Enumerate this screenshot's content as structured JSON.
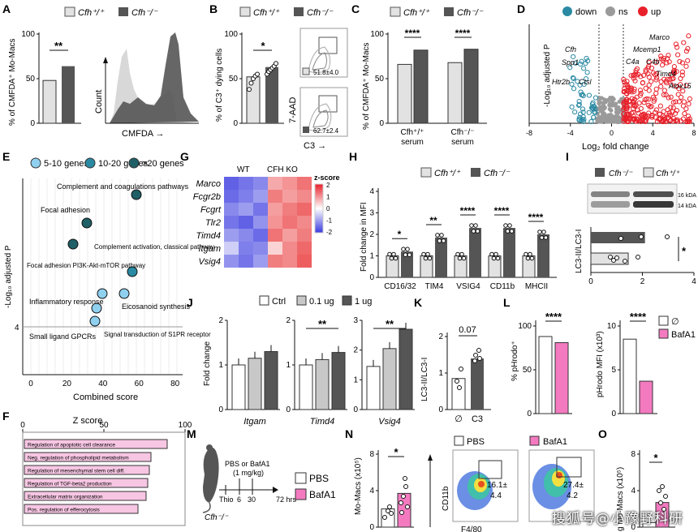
{
  "palette": {
    "wt": "#e2e2e2",
    "ko": "#555555",
    "dark": "#444444",
    "teal": "#2b8aa3",
    "red": "#e8202a",
    "gray": "#9a9a9a",
    "pink": "#f47ac0",
    "lightblue": "#8fd0ef",
    "tealdark": "#1f5f66"
  },
  "panels": {
    "A": "A",
    "B": "B",
    "C": "C",
    "D": "D",
    "E": "E",
    "F": "F",
    "G": "G",
    "H": "H",
    "I": "I",
    "J": "J",
    "K": "K",
    "L": "L",
    "M": "M",
    "N": "N",
    "O": "O"
  },
  "legend_genotype": {
    "wt": "Cfh⁺/⁺",
    "ko": "Cfh⁻/⁻"
  },
  "A": {
    "ylabel": "% of CMFDA⁺ Mo-Macs",
    "yticks": [
      "0",
      "50",
      "100"
    ],
    "ylim": [
      0,
      100
    ],
    "values": [
      48,
      64
    ],
    "sig": "**",
    "hist": {
      "ylabel": "Count",
      "xlabel": "CMFDA →"
    }
  },
  "B": {
    "ylabel": "% of C3⁺ dying cells",
    "yticks": [
      "0",
      "50",
      "100"
    ],
    "ylim": [
      0,
      100
    ],
    "values": [
      52,
      63
    ],
    "sig": "*",
    "points_wt": [
      38,
      45,
      50,
      53,
      55
    ],
    "points_ko": [
      55,
      58,
      60,
      62,
      64,
      67
    ],
    "flow": {
      "ylabel": "7-AAD",
      "xlabel": "C3 →",
      "wt_text": "51.8±4.0",
      "ko_text": "62.7±2.4"
    }
  },
  "C": {
    "ylabel": "% of CMFDA⁺ Mo-Macs",
    "yticks": [
      "0",
      "50",
      "100"
    ],
    "ylim": [
      0,
      100
    ],
    "groups": [
      {
        "label1": "Cfh⁺/⁺",
        "label2": "serum",
        "values": [
          66,
          82
        ],
        "sig": "****"
      },
      {
        "label1": "Cfh⁻/⁻",
        "label2": "serum",
        "values": [
          68,
          83
        ],
        "sig": "****"
      }
    ]
  },
  "D": {
    "legend": [
      "down",
      "ns",
      "up"
    ],
    "ylabel": "-Log₁₀ adjusted P",
    "xlabel": "Log₂ fold change",
    "xticks": [
      "-8",
      "-4",
      "0",
      "4",
      "8"
    ],
    "xlim": [
      -8,
      8
    ],
    "labels_down": [
      "Cfh",
      "Spp1",
      "Htr2b",
      "Ctsl"
    ],
    "labels_up": [
      "Marco",
      "Mcemp1",
      "C4a",
      "C4b",
      "Timd4",
      "Alox15"
    ]
  },
  "E": {
    "legend": [
      "5-10 genes",
      "10-20 genes",
      ">20 genes"
    ],
    "ylabel": "-Log₁₀ adjusted P",
    "xlabel": "Combined score",
    "xticks": [
      "0",
      "20",
      "40",
      "60",
      "80"
    ],
    "yticks": [
      "4"
    ],
    "labels": [
      "Complement and coagulations pathways",
      "Focal adhesion",
      "Focal adhesion PI3K-Akt-mTOR pathway",
      "Complement activation, classical pathway",
      "Inflammatory response",
      "Eicosanoid synthesis",
      "Small ligand GPCRs",
      "Signal transduction of S1PR receptor"
    ]
  },
  "F": {
    "title": "Z score",
    "xticks": [
      "0",
      "50",
      "100"
    ],
    "xlim": [
      0,
      100
    ],
    "terms": [
      "Regulation of apoptotic cell clearance",
      "Neg. regulation of phospholipid metabolism",
      "Regulation of mesenchymal stem cell diff.",
      "Regulation of TGF-beta2 production",
      "Extracellular matrix organization",
      "Pos. regulation of efferocytosis"
    ],
    "values": [
      90,
      80,
      79,
      78,
      77,
      72
    ]
  },
  "G": {
    "groups": [
      "WT",
      "CFH KO"
    ],
    "genes": [
      "Marco",
      "Fcgr2b",
      "Fcgrt",
      "Tlr2",
      "Timd4",
      "Itgam",
      "Vsig4"
    ],
    "scale_title": "z-score",
    "scale_ticks": [
      "2",
      "1",
      "0",
      "-1",
      "-2"
    ],
    "z": [
      [
        -1.6,
        -1.4,
        -1.2,
        0.8,
        1.0,
        1.3
      ],
      [
        -1.5,
        -1.3,
        -1.0,
        1.2,
        0.9,
        1.1
      ],
      [
        -1.2,
        -1.0,
        -1.4,
        0.9,
        1.2,
        1.4
      ],
      [
        -1.4,
        -1.6,
        -1.1,
        1.0,
        1.3,
        1.1
      ],
      [
        -1.0,
        -1.2,
        -1.5,
        1.3,
        0.9,
        1.2
      ],
      [
        -0.5,
        -1.3,
        -1.2,
        0.4,
        1.1,
        1.4
      ],
      [
        -1.1,
        -1.4,
        -1.0,
        1.2,
        1.1,
        1.5
      ]
    ]
  },
  "H": {
    "ylabel": "Fold change in MFI",
    "yticks": [
      "0",
      "1",
      "2",
      "3",
      "4"
    ],
    "ylim": [
      0,
      4
    ],
    "categories": [
      "CD16/32",
      "TIM4",
      "VSIG4",
      "CD11b",
      "MHCII"
    ],
    "wt": [
      1.0,
      1.0,
      1.0,
      1.0,
      1.0
    ],
    "ko": [
      1.2,
      1.85,
      2.3,
      2.3,
      2.0
    ],
    "sig": [
      "*",
      "**",
      "****",
      "****",
      "****"
    ]
  },
  "I": {
    "legend": [
      "Cfh⁻/⁻",
      "Cfh⁺/⁺"
    ],
    "kda": [
      "16 kDA",
      "14 kDA"
    ],
    "ylabel": "LC3-II/LC3-I",
    "xticks": [
      "0",
      "2",
      "4"
    ],
    "xlim": [
      0,
      4
    ],
    "values_ko": 2.1,
    "values_wt": 1.45,
    "sig": "*"
  },
  "J": {
    "legend": [
      "Ctrl",
      "0.1 ug",
      "1 ug"
    ],
    "ylabel": "Fold change",
    "panels": [
      {
        "gene": "Itgam",
        "yticks": [
          "0",
          "1",
          "2"
        ],
        "ymax": 2,
        "values": [
          1.0,
          1.15,
          1.3
        ],
        "sig": ""
      },
      {
        "gene": "Timd4",
        "yticks": [
          "0",
          "1",
          "2"
        ],
        "ymax": 2,
        "values": [
          1.0,
          1.12,
          1.28
        ],
        "sig": "**"
      },
      {
        "gene": "Vsig4",
        "yticks": [
          "0",
          "1",
          "2",
          "3"
        ],
        "ymax": 3,
        "values": [
          1.45,
          2.05,
          2.7
        ],
        "sig": "**"
      }
    ]
  },
  "K": {
    "ylabel": "LC3-II/LC3-I",
    "yticks": [
      "0",
      "1",
      "2"
    ],
    "ylim": [
      0,
      2
    ],
    "categories": [
      "∅",
      "C3"
    ],
    "values": [
      0.85,
      1.4
    ],
    "p": "0.07"
  },
  "L": {
    "legend": [
      "∅",
      "BafA1"
    ],
    "left": {
      "ylabel": "% pHrodo⁺",
      "yticks": [
        "0",
        "50",
        "100"
      ],
      "ymax": 100,
      "values": [
        88,
        81
      ],
      "sig": "****"
    },
    "right": {
      "ylabel": "pHrodo MFI (x10³)",
      "yticks": [
        "0",
        "5",
        "10"
      ],
      "ymax": 10,
      "values": [
        8.5,
        3.7
      ],
      "sig": "****"
    }
  },
  "M": {
    "treatment": "PBS or BafA1",
    "dose": "(1 mg/kg)",
    "times": [
      "Thio",
      "6",
      "30",
      "72 hrs"
    ],
    "mouse": "Cfh⁻/⁻",
    "legend": [
      "PBS",
      "BafA1"
    ]
  },
  "N": {
    "ylabel": "Mo-Macs (x10⁵)",
    "yticks": [
      "0",
      "4",
      "8"
    ],
    "ymax": 8,
    "values": [
      2.0,
      3.7
    ],
    "sig": "*",
    "flow": {
      "legend": [
        "PBS",
        "BafA1"
      ],
      "ylabel": "CD11b",
      "xlabel": "F4/80",
      "pbs_text1": "16.1±",
      "pbs_text2": "4.4",
      "baf_text1": "27.4±",
      "baf_text2": "4.2"
    }
  },
  "O": {
    "ylabel": "g Mo-Macs (x10⁵)",
    "yticks": [
      "0",
      "4",
      "8"
    ],
    "ymax": 8,
    "values": [
      0.5,
      2.7
    ],
    "sig": "*"
  },
  "watermark": "搜狐号@小豫野科研"
}
